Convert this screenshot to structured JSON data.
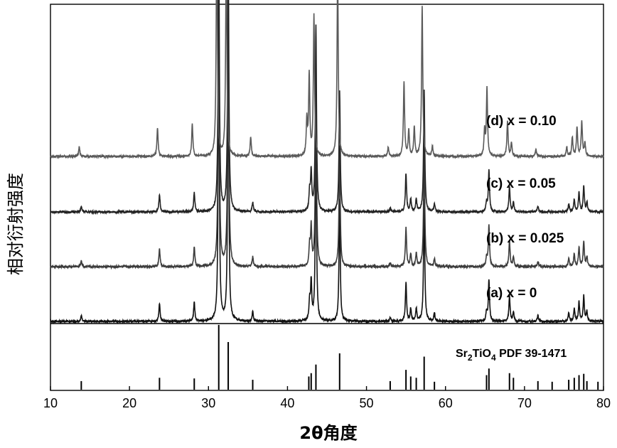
{
  "chart_data": {
    "type": "line",
    "xlabel": "2θ角度",
    "ylabel": "相对衍射强度",
    "xlim": [
      10,
      80
    ],
    "xticks": [
      10,
      20,
      30,
      40,
      50,
      60,
      70,
      80
    ],
    "grid": false,
    "reference": {
      "label_prefix": "Sr",
      "label_sub1": "2",
      "label_mid": "TiO",
      "label_sub2": "4",
      "label_suffix": " PDF 39-1471",
      "color": "#000000",
      "peaks": [
        {
          "x": 13.9,
          "intensity": 0.13
        },
        {
          "x": 23.8,
          "intensity": 0.18
        },
        {
          "x": 28.2,
          "intensity": 0.17
        },
        {
          "x": 31.3,
          "intensity": 0.98
        },
        {
          "x": 32.5,
          "intensity": 0.72
        },
        {
          "x": 35.6,
          "intensity": 0.15
        },
        {
          "x": 42.7,
          "intensity": 0.2
        },
        {
          "x": 43.0,
          "intensity": 0.25
        },
        {
          "x": 43.6,
          "intensity": 0.38
        },
        {
          "x": 46.6,
          "intensity": 0.55
        },
        {
          "x": 53.0,
          "intensity": 0.13
        },
        {
          "x": 55.0,
          "intensity": 0.3
        },
        {
          "x": 55.6,
          "intensity": 0.2
        },
        {
          "x": 56.3,
          "intensity": 0.18
        },
        {
          "x": 57.3,
          "intensity": 0.5
        },
        {
          "x": 58.6,
          "intensity": 0.12
        },
        {
          "x": 65.2,
          "intensity": 0.22
        },
        {
          "x": 65.5,
          "intensity": 0.32
        },
        {
          "x": 68.1,
          "intensity": 0.25
        },
        {
          "x": 68.6,
          "intensity": 0.18
        },
        {
          "x": 71.7,
          "intensity": 0.13
        },
        {
          "x": 73.5,
          "intensity": 0.12
        },
        {
          "x": 75.6,
          "intensity": 0.15
        },
        {
          "x": 76.3,
          "intensity": 0.18
        },
        {
          "x": 76.9,
          "intensity": 0.22
        },
        {
          "x": 77.5,
          "intensity": 0.24
        },
        {
          "x": 77.9,
          "intensity": 0.13
        },
        {
          "x": 79.3,
          "intensity": 0.12
        }
      ]
    },
    "series": [
      {
        "name": "(a) x = 0",
        "color": "#111111",
        "offset": 0,
        "scale": 1.0,
        "shift": 0,
        "peaks": [
          {
            "x": 13.9,
            "h": 0.018
          },
          {
            "x": 23.8,
            "h": 0.055
          },
          {
            "x": 28.2,
            "h": 0.06
          },
          {
            "x": 31.3,
            "h": 0.88
          },
          {
            "x": 32.5,
            "h": 0.85
          },
          {
            "x": 35.6,
            "h": 0.03
          },
          {
            "x": 42.8,
            "h": 0.06
          },
          {
            "x": 43.0,
            "h": 0.12
          },
          {
            "x": 43.6,
            "h": 0.58
          },
          {
            "x": 46.6,
            "h": 0.38
          },
          {
            "x": 53.0,
            "h": 0.012
          },
          {
            "x": 55.0,
            "h": 0.12
          },
          {
            "x": 55.6,
            "h": 0.04
          },
          {
            "x": 56.3,
            "h": 0.04
          },
          {
            "x": 57.3,
            "h": 0.38
          },
          {
            "x": 58.6,
            "h": 0.025
          },
          {
            "x": 65.2,
            "h": 0.03
          },
          {
            "x": 65.5,
            "h": 0.13
          },
          {
            "x": 68.1,
            "h": 0.08
          },
          {
            "x": 68.6,
            "h": 0.03
          },
          {
            "x": 71.7,
            "h": 0.018
          },
          {
            "x": 75.6,
            "h": 0.025
          },
          {
            "x": 76.3,
            "h": 0.04
          },
          {
            "x": 76.9,
            "h": 0.06
          },
          {
            "x": 77.5,
            "h": 0.08
          },
          {
            "x": 77.9,
            "h": 0.03
          }
        ]
      },
      {
        "name": "(b) x = 0.025",
        "color": "#3c3c3c",
        "offset": 1,
        "scale": 1.0,
        "shift": 0,
        "peaks": [
          {
            "x": 13.9,
            "h": 0.018
          },
          {
            "x": 23.8,
            "h": 0.055
          },
          {
            "x": 28.2,
            "h": 0.06
          },
          {
            "x": 31.3,
            "h": 0.88
          },
          {
            "x": 32.5,
            "h": 0.85
          },
          {
            "x": 35.6,
            "h": 0.03
          },
          {
            "x": 42.8,
            "h": 0.06
          },
          {
            "x": 43.0,
            "h": 0.12
          },
          {
            "x": 43.6,
            "h": 0.58
          },
          {
            "x": 46.6,
            "h": 0.38
          },
          {
            "x": 53.0,
            "h": 0.012
          },
          {
            "x": 55.0,
            "h": 0.12
          },
          {
            "x": 55.6,
            "h": 0.04
          },
          {
            "x": 56.3,
            "h": 0.04
          },
          {
            "x": 57.3,
            "h": 0.38
          },
          {
            "x": 58.6,
            "h": 0.025
          },
          {
            "x": 65.2,
            "h": 0.03
          },
          {
            "x": 65.5,
            "h": 0.13
          },
          {
            "x": 68.1,
            "h": 0.08
          },
          {
            "x": 68.6,
            "h": 0.03
          },
          {
            "x": 71.7,
            "h": 0.018
          },
          {
            "x": 75.6,
            "h": 0.025
          },
          {
            "x": 76.3,
            "h": 0.04
          },
          {
            "x": 76.9,
            "h": 0.06
          },
          {
            "x": 77.5,
            "h": 0.08
          },
          {
            "x": 77.9,
            "h": 0.03
          }
        ]
      },
      {
        "name": "(c) x = 0.05",
        "color": "#222222",
        "offset": 2,
        "scale": 1.0,
        "shift": 0,
        "peaks": [
          {
            "x": 13.9,
            "h": 0.018
          },
          {
            "x": 23.8,
            "h": 0.055
          },
          {
            "x": 28.2,
            "h": 0.06
          },
          {
            "x": 31.3,
            "h": 0.88
          },
          {
            "x": 32.5,
            "h": 0.85
          },
          {
            "x": 35.6,
            "h": 0.03
          },
          {
            "x": 42.8,
            "h": 0.06
          },
          {
            "x": 43.0,
            "h": 0.12
          },
          {
            "x": 43.6,
            "h": 0.58
          },
          {
            "x": 46.6,
            "h": 0.38
          },
          {
            "x": 53.0,
            "h": 0.012
          },
          {
            "x": 55.0,
            "h": 0.12
          },
          {
            "x": 55.6,
            "h": 0.04
          },
          {
            "x": 56.3,
            "h": 0.04
          },
          {
            "x": 57.3,
            "h": 0.38
          },
          {
            "x": 58.6,
            "h": 0.025
          },
          {
            "x": 65.2,
            "h": 0.03
          },
          {
            "x": 65.5,
            "h": 0.13
          },
          {
            "x": 68.1,
            "h": 0.08
          },
          {
            "x": 68.6,
            "h": 0.03
          },
          {
            "x": 71.7,
            "h": 0.018
          },
          {
            "x": 75.6,
            "h": 0.025
          },
          {
            "x": 76.3,
            "h": 0.04
          },
          {
            "x": 76.9,
            "h": 0.06
          },
          {
            "x": 77.5,
            "h": 0.08
          },
          {
            "x": 77.9,
            "h": 0.03
          }
        ]
      },
      {
        "name": "(d) x = 0.10",
        "color": "#5a5a5a",
        "offset": 3,
        "scale": 1.0,
        "shift": -0.25,
        "peaks": [
          {
            "x": 13.9,
            "h": 0.03
          },
          {
            "x": 23.8,
            "h": 0.09
          },
          {
            "x": 28.2,
            "h": 0.1
          },
          {
            "x": 31.3,
            "h": 0.72
          },
          {
            "x": 32.5,
            "h": 0.65
          },
          {
            "x": 35.6,
            "h": 0.06
          },
          {
            "x": 42.7,
            "h": 0.11
          },
          {
            "x": 43.0,
            "h": 0.25
          },
          {
            "x": 43.6,
            "h": 0.44
          },
          {
            "x": 46.6,
            "h": 0.59
          },
          {
            "x": 53.0,
            "h": 0.03
          },
          {
            "x": 55.0,
            "h": 0.23
          },
          {
            "x": 55.6,
            "h": 0.08
          },
          {
            "x": 56.3,
            "h": 0.09
          },
          {
            "x": 57.3,
            "h": 0.47
          },
          {
            "x": 58.6,
            "h": 0.03
          },
          {
            "x": 65.2,
            "h": 0.08
          },
          {
            "x": 65.5,
            "h": 0.21
          },
          {
            "x": 68.1,
            "h": 0.11
          },
          {
            "x": 68.6,
            "h": 0.04
          },
          {
            "x": 71.7,
            "h": 0.02
          },
          {
            "x": 75.6,
            "h": 0.03
          },
          {
            "x": 76.3,
            "h": 0.06
          },
          {
            "x": 76.9,
            "h": 0.09
          },
          {
            "x": 77.5,
            "h": 0.11
          },
          {
            "x": 77.9,
            "h": 0.04
          }
        ]
      }
    ]
  }
}
